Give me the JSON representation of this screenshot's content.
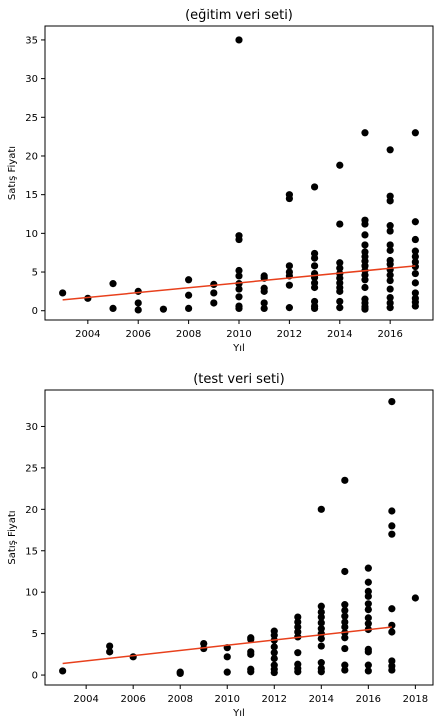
{
  "chart_data": [
    {
      "type": "scatter",
      "title": "(eğitim veri seti)",
      "xlabel": "Yıl",
      "ylabel": "Satış Fiyatı",
      "xlim": [
        2002.3,
        2017.7
      ],
      "ylim": [
        -1.2,
        36.8
      ],
      "xticks": [
        2004,
        2006,
        2008,
        2010,
        2012,
        2014,
        2016
      ],
      "yticks": [
        0,
        5,
        10,
        15,
        20,
        25,
        30,
        35
      ],
      "point_color": "#000000",
      "line_color": "#e8401c",
      "series": [
        {
          "name": "data",
          "points": [
            [
              2003,
              2.3
            ],
            [
              2004,
              1.6
            ],
            [
              2005,
              3.5
            ],
            [
              2005,
              0.3
            ],
            [
              2006,
              2.5
            ],
            [
              2006,
              1.0
            ],
            [
              2006,
              0.1
            ],
            [
              2007,
              0.2
            ],
            [
              2008,
              4.0
            ],
            [
              2008,
              2.0
            ],
            [
              2008,
              0.3
            ],
            [
              2009,
              3.4
            ],
            [
              2009,
              2.3
            ],
            [
              2009,
              1.0
            ],
            [
              2010,
              35.0
            ],
            [
              2010,
              9.7
            ],
            [
              2010,
              9.2
            ],
            [
              2010,
              5.2
            ],
            [
              2010,
              4.5
            ],
            [
              2010,
              3.5
            ],
            [
              2010,
              2.8
            ],
            [
              2010,
              1.8
            ],
            [
              2010,
              0.6
            ],
            [
              2010,
              0.3
            ],
            [
              2011,
              4.5
            ],
            [
              2011,
              4.2
            ],
            [
              2011,
              2.9
            ],
            [
              2011,
              2.5
            ],
            [
              2011,
              1.0
            ],
            [
              2011,
              0.3
            ],
            [
              2012,
              15.0
            ],
            [
              2012,
              14.5
            ],
            [
              2012,
              5.8
            ],
            [
              2012,
              5.0
            ],
            [
              2012,
              4.5
            ],
            [
              2012,
              3.3
            ],
            [
              2012,
              0.4
            ],
            [
              2013,
              16.0
            ],
            [
              2013,
              7.4
            ],
            [
              2013,
              6.8
            ],
            [
              2013,
              5.8
            ],
            [
              2013,
              4.8
            ],
            [
              2013,
              4.3
            ],
            [
              2013,
              3.6
            ],
            [
              2013,
              3.0
            ],
            [
              2013,
              1.2
            ],
            [
              2013,
              0.6
            ],
            [
              2013,
              0.3
            ],
            [
              2014,
              18.8
            ],
            [
              2014,
              11.2
            ],
            [
              2014,
              6.2
            ],
            [
              2014,
              5.5
            ],
            [
              2014,
              4.8
            ],
            [
              2014,
              4.2
            ],
            [
              2014,
              3.6
            ],
            [
              2014,
              3.0
            ],
            [
              2014,
              2.5
            ],
            [
              2014,
              1.2
            ],
            [
              2014,
              0.4
            ],
            [
              2015,
              23.0
            ],
            [
              2015,
              11.7
            ],
            [
              2015,
              11.2
            ],
            [
              2015,
              9.8
            ],
            [
              2015,
              8.5
            ],
            [
              2015,
              7.6
            ],
            [
              2015,
              7.0
            ],
            [
              2015,
              6.4
            ],
            [
              2015,
              5.8
            ],
            [
              2015,
              5.2
            ],
            [
              2015,
              4.6
            ],
            [
              2015,
              4.0
            ],
            [
              2015,
              3.0
            ],
            [
              2015,
              1.5
            ],
            [
              2015,
              1.0
            ],
            [
              2015,
              0.5
            ],
            [
              2015,
              0.2
            ],
            [
              2016,
              20.8
            ],
            [
              2016,
              14.8
            ],
            [
              2016,
              14.2
            ],
            [
              2016,
              11.0
            ],
            [
              2016,
              10.3
            ],
            [
              2016,
              8.5
            ],
            [
              2016,
              7.8
            ],
            [
              2016,
              6.5
            ],
            [
              2016,
              6.0
            ],
            [
              2016,
              5.3
            ],
            [
              2016,
              4.6
            ],
            [
              2016,
              3.9
            ],
            [
              2016,
              2.8
            ],
            [
              2016,
              1.7
            ],
            [
              2016,
              1.0
            ],
            [
              2016,
              0.4
            ],
            [
              2017,
              23.0
            ],
            [
              2017,
              11.5
            ],
            [
              2017,
              9.2
            ],
            [
              2017,
              7.7
            ],
            [
              2017,
              7.0
            ],
            [
              2017,
              6.3
            ],
            [
              2017,
              5.7
            ],
            [
              2017,
              4.8
            ],
            [
              2017,
              3.6
            ],
            [
              2017,
              2.3
            ],
            [
              2017,
              1.6
            ],
            [
              2017,
              1.1
            ],
            [
              2017,
              0.6
            ]
          ]
        }
      ],
      "trend_line": {
        "x": [
          2003,
          2017
        ],
        "y": [
          1.4,
          5.8
        ]
      }
    },
    {
      "type": "scatter",
      "title": "(test veri seti)",
      "xlabel": "Yıl",
      "ylabel": "Satış Fiyatı",
      "xlim": [
        2002.25,
        2018.75
      ],
      "ylim": [
        -1.2,
        34.4
      ],
      "xticks": [
        2004,
        2006,
        2008,
        2010,
        2012,
        2014,
        2016,
        2018
      ],
      "yticks": [
        0,
        5,
        10,
        15,
        20,
        25,
        30
      ],
      "point_color": "#000000",
      "line_color": "#e8401c",
      "series": [
        {
          "name": "data",
          "points": [
            [
              2003,
              0.5
            ],
            [
              2005,
              3.5
            ],
            [
              2005,
              2.8
            ],
            [
              2006,
              2.2
            ],
            [
              2008,
              0.35
            ],
            [
              2008,
              0.2
            ],
            [
              2009,
              3.8
            ],
            [
              2009,
              3.2
            ],
            [
              2010,
              3.3
            ],
            [
              2010,
              2.2
            ],
            [
              2010,
              0.35
            ],
            [
              2011,
              4.5
            ],
            [
              2011,
              4.3
            ],
            [
              2011,
              2.8
            ],
            [
              2011,
              2.5
            ],
            [
              2011,
              0.7
            ],
            [
              2011,
              0.4
            ],
            [
              2012,
              5.3
            ],
            [
              2012,
              4.8
            ],
            [
              2012,
              4.2
            ],
            [
              2012,
              3.4
            ],
            [
              2012,
              2.7
            ],
            [
              2012,
              2.0
            ],
            [
              2012,
              1.2
            ],
            [
              2012,
              0.7
            ],
            [
              2012,
              0.3
            ],
            [
              2013,
              7.0
            ],
            [
              2013,
              6.4
            ],
            [
              2013,
              5.8
            ],
            [
              2013,
              5.2
            ],
            [
              2013,
              4.6
            ],
            [
              2013,
              2.7
            ],
            [
              2013,
              1.3
            ],
            [
              2013,
              0.8
            ],
            [
              2013,
              0.4
            ],
            [
              2014,
              20.0
            ],
            [
              2014,
              8.3
            ],
            [
              2014,
              7.6
            ],
            [
              2014,
              7.0
            ],
            [
              2014,
              6.3
            ],
            [
              2014,
              5.6
            ],
            [
              2014,
              5.0
            ],
            [
              2014,
              4.4
            ],
            [
              2014,
              3.5
            ],
            [
              2014,
              1.5
            ],
            [
              2014,
              0.8
            ],
            [
              2014,
              0.4
            ],
            [
              2015,
              23.5
            ],
            [
              2015,
              12.5
            ],
            [
              2015,
              8.5
            ],
            [
              2015,
              7.8
            ],
            [
              2015,
              7.1
            ],
            [
              2015,
              6.4
            ],
            [
              2015,
              5.8
            ],
            [
              2015,
              5.1
            ],
            [
              2015,
              4.5
            ],
            [
              2015,
              3.2
            ],
            [
              2015,
              1.2
            ],
            [
              2015,
              0.6
            ],
            [
              2016,
              12.9
            ],
            [
              2016,
              11.2
            ],
            [
              2016,
              10.1
            ],
            [
              2016,
              9.5
            ],
            [
              2016,
              8.6
            ],
            [
              2016,
              7.9
            ],
            [
              2016,
              6.9
            ],
            [
              2016,
              6.2
            ],
            [
              2016,
              5.5
            ],
            [
              2016,
              3.1
            ],
            [
              2016,
              2.8
            ],
            [
              2016,
              1.2
            ],
            [
              2016,
              0.5
            ],
            [
              2017,
              33.0
            ],
            [
              2017,
              19.8
            ],
            [
              2017,
              18.0
            ],
            [
              2017,
              17.0
            ],
            [
              2017,
              8.0
            ],
            [
              2017,
              6.0
            ],
            [
              2017,
              5.2
            ],
            [
              2017,
              1.7
            ],
            [
              2017,
              1.1
            ],
            [
              2017,
              0.6
            ],
            [
              2018,
              9.3
            ]
          ]
        }
      ],
      "trend_line": {
        "x": [
          2003,
          2017
        ],
        "y": [
          1.4,
          5.8
        ]
      }
    }
  ]
}
